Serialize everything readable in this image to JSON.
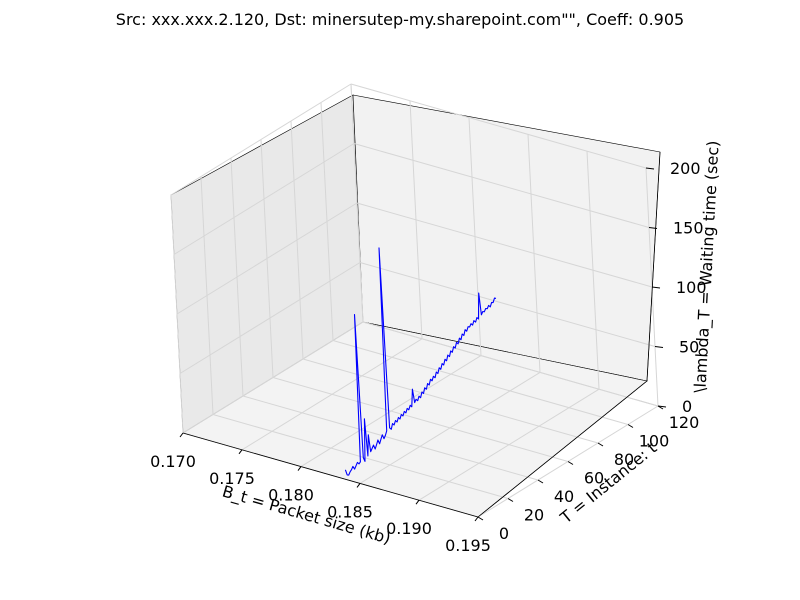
{
  "chart_data": {
    "type": "line",
    "projection": "3d",
    "title": "Src: xxx.xxx.2.120, Dst: minersutep-my.sharepoint.com\"\", Coeff: 0.905",
    "xlabel": "B_t = Packet size (kb)",
    "ylabel": "T = Instance: t",
    "zlabel": "\\lambda_T = Waiting time (sec)",
    "xlim": [
      0.17,
      0.195
    ],
    "ylim": [
      0,
      120
    ],
    "zlim": [
      0,
      200
    ],
    "xticks": [
      "0.170",
      "0.175",
      "0.180",
      "0.185",
      "0.190",
      "0.195"
    ],
    "yticks": [
      "0",
      "20",
      "40",
      "60",
      "80",
      "100",
      "120"
    ],
    "zticks": [
      "0",
      "50",
      "100",
      "150",
      "200"
    ],
    "grid": true,
    "line_color": "#0000ff",
    "series": [
      {
        "name": "waiting time",
        "x_const": 0.1838,
        "t": [
          0,
          1,
          2,
          3,
          4,
          5,
          6,
          7,
          8,
          9,
          10,
          11,
          12,
          13,
          14,
          15,
          16,
          17,
          18,
          19,
          20,
          21,
          22,
          23,
          24,
          25,
          26,
          27,
          28,
          29,
          30,
          31,
          32,
          33,
          34,
          35,
          36,
          37,
          38,
          39,
          40,
          41,
          42,
          43,
          44,
          45,
          46,
          47,
          48,
          49,
          50,
          51,
          52,
          53,
          54,
          55,
          56,
          57,
          58,
          59,
          60,
          61,
          62,
          63,
          64,
          65,
          66,
          67,
          68,
          69,
          70,
          71,
          72,
          73,
          74,
          75,
          76,
          77,
          78,
          79,
          80,
          81,
          82,
          83,
          84,
          85,
          86,
          87,
          88,
          89,
          90,
          91,
          92,
          93,
          94,
          95,
          96,
          97,
          98,
          99,
          100,
          101,
          102,
          103
        ],
        "z": [
          8,
          3,
          2,
          4,
          5,
          7,
          4,
          6,
          8,
          6,
          7,
          130,
          9,
          5,
          40,
          8,
          25,
          10,
          12,
          14,
          10,
          13,
          16,
          12,
          15,
          18,
          14,
          16,
          19,
          172,
          20,
          18,
          22,
          20,
          23,
          21,
          24,
          22,
          25,
          23,
          26,
          24,
          27,
          25,
          28,
          26,
          40,
          28,
          30,
          28,
          31,
          29,
          33,
          31,
          35,
          33,
          37,
          35,
          39,
          37,
          40,
          38,
          42,
          40,
          44,
          42,
          46,
          44,
          48,
          46,
          50,
          48,
          52,
          50,
          54,
          52,
          56,
          54,
          58,
          56,
          60,
          58,
          62,
          60,
          63,
          62,
          64,
          62,
          65,
          63,
          66,
          64,
          85,
          66,
          68,
          67,
          69,
          68,
          70,
          68,
          71,
          70,
          73,
          72
        ]
      }
    ]
  }
}
